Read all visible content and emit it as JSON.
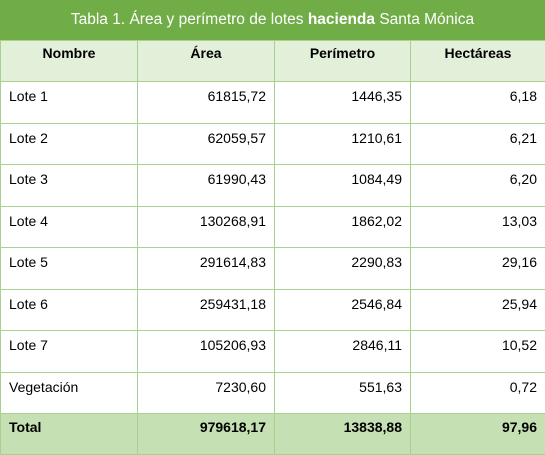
{
  "title": {
    "prefix": "Tabla 1. Área y perímetro de lotes ",
    "emphasis": "hacienda",
    "suffix": " Santa Mónica"
  },
  "headers": [
    "Nombre",
    "Área",
    "Perímetro",
    "Hectáreas"
  ],
  "rows": [
    {
      "nombre": "Lote 1",
      "area": "61815,72",
      "perimetro": "1446,35",
      "hectareas": "6,18"
    },
    {
      "nombre": "Lote 2",
      "area": "62059,57",
      "perimetro": "1210,61",
      "hectareas": "6,21"
    },
    {
      "nombre": "Lote 3",
      "area": "61990,43",
      "perimetro": "1084,49",
      "hectareas": "6,20"
    },
    {
      "nombre": "Lote 4",
      "area": "130268,91",
      "perimetro": "1862,02",
      "hectareas": "13,03"
    },
    {
      "nombre": "Lote 5",
      "area": "291614,83",
      "perimetro": "2290,83",
      "hectareas": "29,16"
    },
    {
      "nombre": "Lote 6",
      "area": "259431,18",
      "perimetro": "2546,84",
      "hectareas": "25,94"
    },
    {
      "nombre": "Lote 7",
      "area": "105206,93",
      "perimetro": "2846,11",
      "hectareas": "10,52"
    },
    {
      "nombre": "Vegetación",
      "area": "7230,60",
      "perimetro": "551,63",
      "hectareas": "0,72"
    }
  ],
  "total": {
    "nombre": "Total",
    "area": "979618,17",
    "perimetro": "13838,88",
    "hectareas": "97,96"
  },
  "colors": {
    "title_bg": "#70ad47",
    "header_bg": "#e2efd9",
    "total_bg": "#c5e0b3",
    "border": "#a9d08e"
  }
}
